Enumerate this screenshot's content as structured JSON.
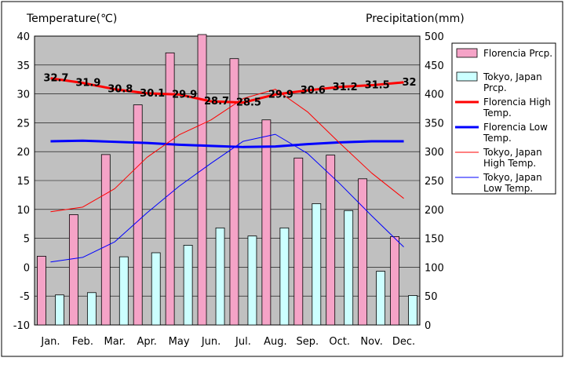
{
  "chart_data": {
    "type": "bar",
    "title": "",
    "categories": [
      "Jan.",
      "Feb.",
      "Mar.",
      "Apr.",
      "May",
      "Jun.",
      "Jul.",
      "Aug.",
      "Sep.",
      "Oct.",
      "Nov.",
      "Dec."
    ],
    "left_axis": {
      "label": "Temperature(℃)",
      "ylim": [
        -10,
        40
      ],
      "ticks": [
        "-10",
        "-5",
        "0",
        "5",
        "10",
        "15",
        "20",
        "25",
        "30",
        "35",
        "40"
      ]
    },
    "right_axis": {
      "label": "Precipitation(mm)",
      "ylim": [
        0,
        500
      ],
      "ticks": [
        "0",
        "50",
        "100",
        "150",
        "200",
        "250",
        "300",
        "350",
        "400",
        "450",
        "500"
      ]
    },
    "grid": true,
    "legend_position": "right",
    "bar_series": [
      {
        "name": "Florencia Prcp.",
        "color": "#f5a3c7",
        "values": [
          119,
          191,
          295,
          381,
          471,
          503,
          461,
          355,
          289,
          294,
          253,
          153
        ]
      },
      {
        "name": "Tokyo, Japan Prcp.",
        "color": "#ccffff",
        "values": [
          52,
          56,
          118,
          125,
          138,
          168,
          154,
          168,
          210,
          198,
          93,
          51
        ]
      }
    ],
    "line_series": [
      {
        "name": "Florencia High Temp.",
        "color": "#ff0000",
        "width": "thick",
        "values": [
          32.7,
          31.9,
          30.8,
          30.1,
          29.9,
          28.7,
          28.5,
          29.9,
          30.6,
          31.2,
          31.5,
          32.0
        ],
        "labels": [
          "32.7",
          "31.9",
          "30.8",
          "30.1",
          "29.9",
          "28.7",
          "28.5",
          "29.9",
          "30.6",
          "31.2",
          "31.5",
          "32"
        ]
      },
      {
        "name": "Florencia Low Temp.",
        "color": "#0000ff",
        "width": "thick",
        "values": [
          21.8,
          21.9,
          21.7,
          21.5,
          21.2,
          21.0,
          20.8,
          20.9,
          21.3,
          21.6,
          21.8,
          21.8
        ]
      },
      {
        "name": "Tokyo, Japan High Temp.",
        "color": "#ff0000",
        "width": "thin",
        "values": [
          9.6,
          10.4,
          13.6,
          19.0,
          22.9,
          25.5,
          29.2,
          30.8,
          26.9,
          21.5,
          16.3,
          11.9
        ]
      },
      {
        "name": "Tokyo, Japan Low Temp.",
        "color": "#0000ff",
        "width": "thin",
        "values": [
          0.9,
          1.7,
          4.4,
          9.4,
          14.0,
          18.0,
          21.8,
          23.0,
          19.7,
          14.5,
          8.9,
          3.5
        ]
      }
    ]
  }
}
